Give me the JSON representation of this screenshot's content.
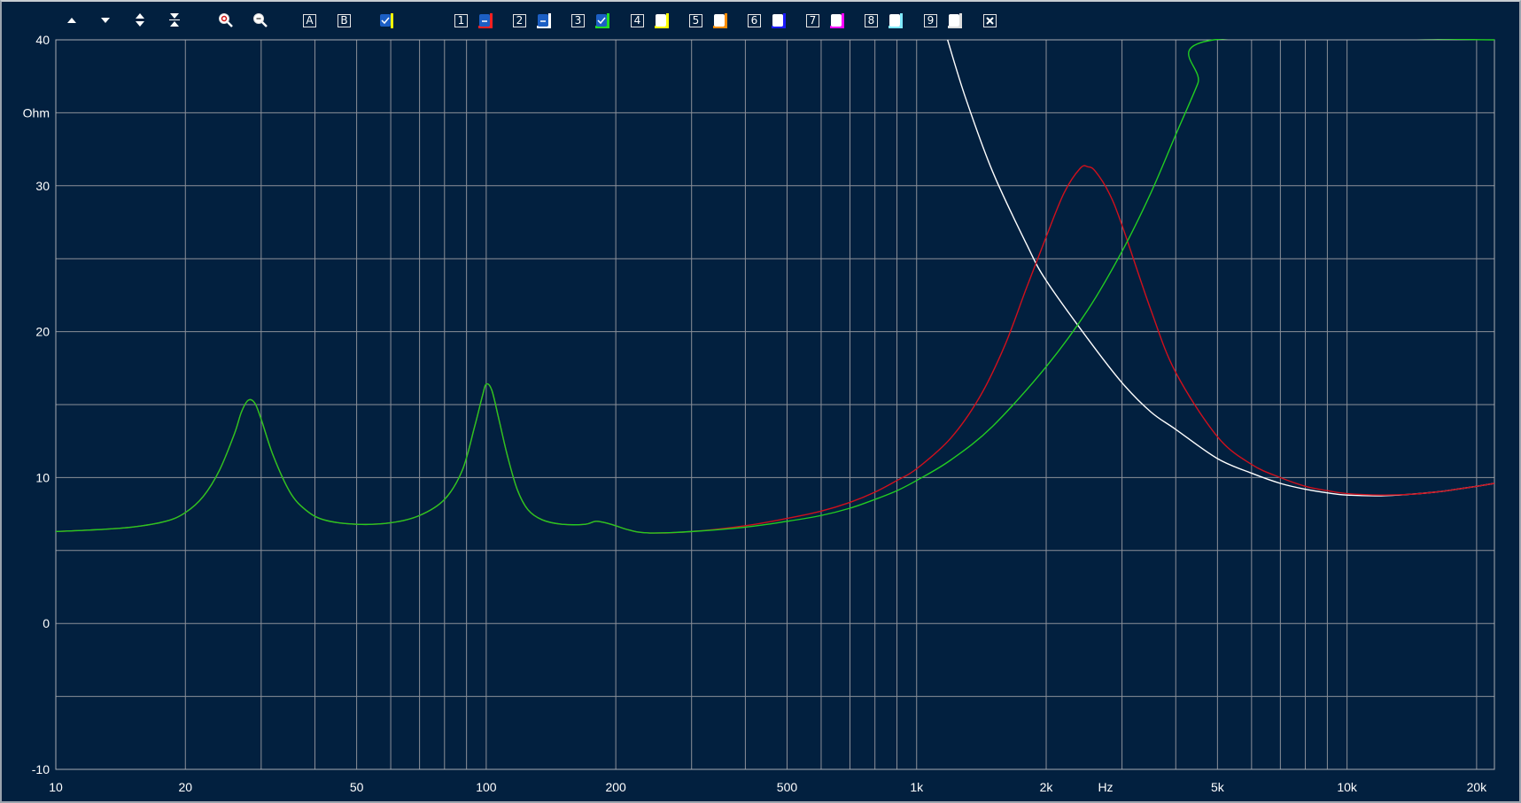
{
  "toolbar": {
    "buttons": [
      {
        "name": "scroll-up-icon"
      },
      {
        "name": "scroll-down-icon"
      },
      {
        "name": "expand-range-icon"
      },
      {
        "name": "shrink-range-icon"
      },
      {
        "name": "zoom-in-icon"
      },
      {
        "name": "zoom-out-icon"
      }
    ],
    "marker_a": "A",
    "marker_b": "B",
    "channels": [
      {
        "key": "1",
        "color": "#ff2020",
        "state": "dash"
      },
      {
        "key": "2",
        "color": "#ffffff",
        "state": "dash"
      },
      {
        "key": "3",
        "color": "#22dd22",
        "state": "checked"
      },
      {
        "key": "4",
        "color": "#ffff00",
        "state": "empty"
      },
      {
        "key": "5",
        "color": "#ff8c00",
        "state": "empty"
      },
      {
        "key": "6",
        "color": "#1a1aff",
        "state": "empty"
      },
      {
        "key": "7",
        "color": "#ff00ff",
        "state": "empty"
      },
      {
        "key": "8",
        "color": "#7fe9ff",
        "state": "empty"
      },
      {
        "key": "9",
        "color": "#dddddd",
        "state": "empty"
      }
    ],
    "close_icon": "close-box-icon"
  },
  "chart_data": {
    "type": "line",
    "xscale": "log",
    "xlim": [
      10,
      22000
    ],
    "ylim": [
      -10,
      40
    ],
    "ylabel": "Ohm",
    "xlabel": "Hz",
    "grid": true,
    "x_ticks": [
      {
        "v": 10,
        "label": "10"
      },
      {
        "v": 20,
        "label": "20"
      },
      {
        "v": 50,
        "label": "50"
      },
      {
        "v": 100,
        "label": "100"
      },
      {
        "v": 200,
        "label": "200"
      },
      {
        "v": 500,
        "label": "500"
      },
      {
        "v": 1000,
        "label": "1k"
      },
      {
        "v": 2000,
        "label": "2k"
      },
      {
        "v": 5000,
        "label": "5k"
      },
      {
        "v": 10000,
        "label": "10k"
      },
      {
        "v": 20000,
        "label": "20k"
      }
    ],
    "y_ticks": [
      {
        "v": 40,
        "label": "40"
      },
      {
        "v": 30,
        "label": "30"
      },
      {
        "v": 20,
        "label": "20"
      },
      {
        "v": 10,
        "label": "10"
      },
      {
        "v": 0,
        "label": "0"
      },
      {
        "v": -10,
        "label": "-10"
      }
    ],
    "series": [
      {
        "color": "#ffffff",
        "points": [
          [
            1180,
            40
          ],
          [
            1300,
            36
          ],
          [
            1500,
            31
          ],
          [
            1800,
            26
          ],
          [
            2000,
            23.5
          ],
          [
            2500,
            19.5
          ],
          [
            3000,
            16.5
          ],
          [
            3500,
            14.5
          ],
          [
            4000,
            13.3
          ],
          [
            5000,
            11.3
          ],
          [
            6000,
            10.3
          ],
          [
            7000,
            9.6
          ],
          [
            8000,
            9.2
          ],
          [
            9000,
            8.95
          ],
          [
            10000,
            8.8
          ],
          [
            12000,
            8.75
          ],
          [
            14000,
            8.85
          ],
          [
            16000,
            9.0
          ],
          [
            18000,
            9.2
          ],
          [
            20000,
            9.4
          ],
          [
            22000,
            9.6
          ]
        ]
      },
      {
        "color": "#d0101c",
        "points": [
          [
            10,
            6.3
          ],
          [
            12,
            6.4
          ],
          [
            15,
            6.6
          ],
          [
            18,
            7.0
          ],
          [
            20,
            7.6
          ],
          [
            22,
            8.7
          ],
          [
            24,
            10.5
          ],
          [
            26,
            13.0
          ],
          [
            27,
            14.5
          ],
          [
            28,
            15.3
          ],
          [
            29,
            15.1
          ],
          [
            30,
            14.0
          ],
          [
            32,
            11.5
          ],
          [
            35,
            9.0
          ],
          [
            38,
            7.8
          ],
          [
            42,
            7.1
          ],
          [
            50,
            6.8
          ],
          [
            60,
            6.9
          ],
          [
            70,
            7.4
          ],
          [
            80,
            8.5
          ],
          [
            88,
            10.5
          ],
          [
            94,
            13.5
          ],
          [
            98,
            15.6
          ],
          [
            100,
            16.4
          ],
          [
            103,
            16.0
          ],
          [
            107,
            14.0
          ],
          [
            112,
            11.5
          ],
          [
            118,
            9.2
          ],
          [
            125,
            7.8
          ],
          [
            135,
            7.1
          ],
          [
            150,
            6.8
          ],
          [
            170,
            6.8
          ],
          [
            180,
            7.0
          ],
          [
            195,
            6.8
          ],
          [
            215,
            6.4
          ],
          [
            240,
            6.2
          ],
          [
            300,
            6.3
          ],
          [
            400,
            6.7
          ],
          [
            500,
            7.2
          ],
          [
            600,
            7.7
          ],
          [
            700,
            8.3
          ],
          [
            800,
            9.0
          ],
          [
            900,
            9.8
          ],
          [
            1000,
            10.6
          ],
          [
            1200,
            12.7
          ],
          [
            1400,
            15.5
          ],
          [
            1600,
            19.0
          ],
          [
            1800,
            23.0
          ],
          [
            2000,
            26.5
          ],
          [
            2200,
            29.5
          ],
          [
            2400,
            31.2
          ],
          [
            2500,
            31.3
          ],
          [
            2600,
            31.0
          ],
          [
            2800,
            29.5
          ],
          [
            3000,
            27.3
          ],
          [
            3500,
            21.5
          ],
          [
            4000,
            17.2
          ],
          [
            5000,
            12.8
          ],
          [
            6000,
            10.9
          ],
          [
            7000,
            10.0
          ],
          [
            8000,
            9.4
          ],
          [
            9000,
            9.1
          ],
          [
            10000,
            8.9
          ],
          [
            12000,
            8.8
          ],
          [
            14000,
            8.85
          ],
          [
            16000,
            9.0
          ],
          [
            18000,
            9.2
          ],
          [
            20000,
            9.4
          ],
          [
            22000,
            9.6
          ]
        ]
      },
      {
        "color": "#22cc22",
        "points": [
          [
            10,
            6.3
          ],
          [
            12,
            6.4
          ],
          [
            15,
            6.6
          ],
          [
            18,
            7.0
          ],
          [
            20,
            7.6
          ],
          [
            22,
            8.7
          ],
          [
            24,
            10.5
          ],
          [
            26,
            13.0
          ],
          [
            27,
            14.5
          ],
          [
            28,
            15.3
          ],
          [
            29,
            15.1
          ],
          [
            30,
            14.0
          ],
          [
            32,
            11.5
          ],
          [
            35,
            9.0
          ],
          [
            38,
            7.8
          ],
          [
            42,
            7.1
          ],
          [
            50,
            6.8
          ],
          [
            60,
            6.9
          ],
          [
            70,
            7.4
          ],
          [
            80,
            8.5
          ],
          [
            88,
            10.5
          ],
          [
            94,
            13.5
          ],
          [
            98,
            15.6
          ],
          [
            100,
            16.4
          ],
          [
            103,
            16.0
          ],
          [
            107,
            14.0
          ],
          [
            112,
            11.5
          ],
          [
            118,
            9.2
          ],
          [
            125,
            7.8
          ],
          [
            135,
            7.1
          ],
          [
            150,
            6.8
          ],
          [
            170,
            6.8
          ],
          [
            180,
            7.0
          ],
          [
            195,
            6.8
          ],
          [
            215,
            6.4
          ],
          [
            240,
            6.2
          ],
          [
            300,
            6.3
          ],
          [
            400,
            6.6
          ],
          [
            500,
            7.0
          ],
          [
            600,
            7.4
          ],
          [
            700,
            7.9
          ],
          [
            800,
            8.5
          ],
          [
            900,
            9.1
          ],
          [
            1000,
            9.8
          ],
          [
            1200,
            11.2
          ],
          [
            1500,
            13.5
          ],
          [
            2000,
            17.6
          ],
          [
            2500,
            21.5
          ],
          [
            3000,
            25.5
          ],
          [
            3500,
            29.5
          ],
          [
            4000,
            33.5
          ],
          [
            4500,
            37.0
          ],
          [
            4900,
            40
          ],
          [
            22000,
            40
          ]
        ]
      }
    ]
  }
}
